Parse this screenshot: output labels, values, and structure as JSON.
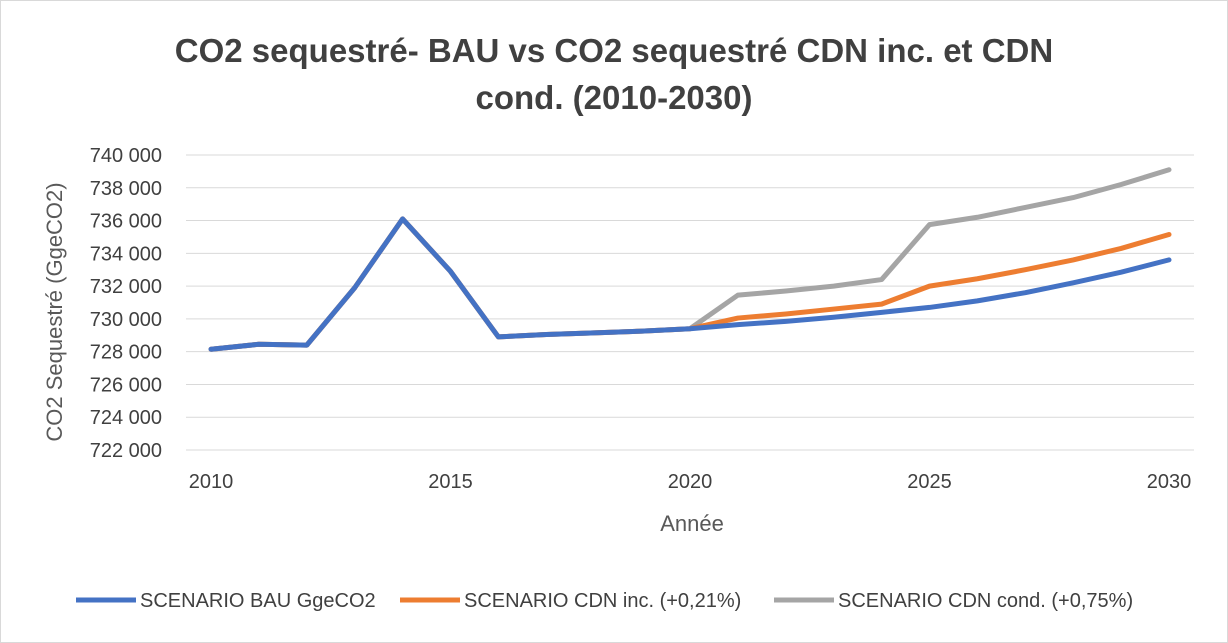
{
  "chart_data": {
    "type": "line",
    "title_lines": [
      "CO2 sequestré- BAU vs CO2 sequestré CDN inc. et CDN",
      "cond. (2010-2030)"
    ],
    "xlabel": "Année",
    "ylabel": "CO2 Sequestré (GgeCO2)",
    "x": [
      2010,
      2011,
      2012,
      2013,
      2014,
      2015,
      2016,
      2017,
      2018,
      2019,
      2020,
      2021,
      2022,
      2023,
      2024,
      2025,
      2026,
      2027,
      2028,
      2029,
      2030
    ],
    "xticks": [
      "2010",
      "2015",
      "2020",
      "2025",
      "2030"
    ],
    "xtick_values": [
      2010,
      2015,
      2020,
      2025,
      2030
    ],
    "xlim": [
      2010,
      2030
    ],
    "yticks": [
      "722 000",
      "724 000",
      "726 000",
      "728 000",
      "730 000",
      "732 000",
      "734 000",
      "736 000",
      "738 000",
      "740 000"
    ],
    "ytick_values": [
      722000,
      724000,
      726000,
      728000,
      730000,
      732000,
      734000,
      736000,
      738000,
      740000
    ],
    "ylim": [
      722000,
      740000
    ],
    "grid": true,
    "legend_position": "bottom",
    "series": [
      {
        "name": "SCENARIO BAU GgeCO2",
        "color": "#4472c4",
        "values": [
          728150,
          728450,
          728400,
          731900,
          736100,
          732900,
          728900,
          729050,
          729150,
          729250,
          729400,
          729650,
          729850,
          730100,
          730400,
          730700,
          731100,
          731600,
          732200,
          732850,
          733600
        ]
      },
      {
        "name": "SCENARIO CDN  inc. (+0,21%)",
        "color": "#ed7d31",
        "values": [
          728150,
          728450,
          728400,
          731900,
          736100,
          732900,
          728900,
          729050,
          729150,
          729250,
          729400,
          730050,
          730300,
          730600,
          730900,
          732000,
          732450,
          733000,
          733600,
          734300,
          735150
        ]
      },
      {
        "name": "SCENARIO CDN cond. (+0,75%)",
        "color": "#a5a5a5",
        "values": [
          728150,
          728450,
          728400,
          731900,
          736100,
          732900,
          728900,
          729050,
          729150,
          729250,
          729400,
          731450,
          731700,
          732000,
          732400,
          735750,
          736200,
          736800,
          737400,
          738200,
          739100
        ]
      }
    ]
  }
}
